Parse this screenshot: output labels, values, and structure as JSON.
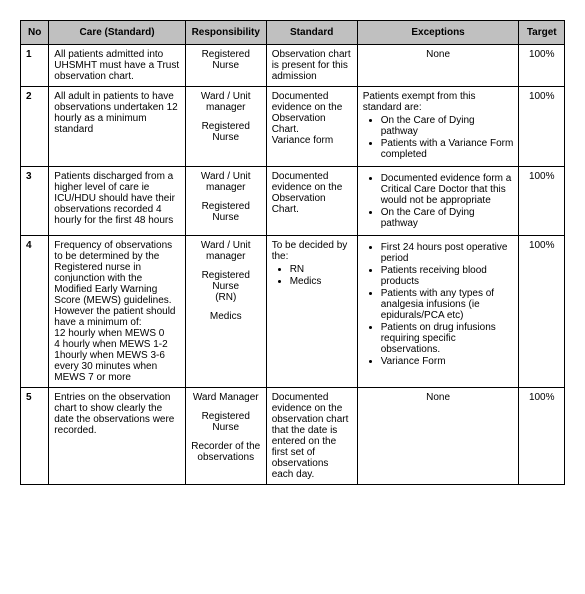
{
  "headers": {
    "no": "No",
    "care": "Care (Standard)",
    "responsibility": "Responsibility",
    "standard": "Standard",
    "exceptions": "Exceptions",
    "target": "Target"
  },
  "rows": [
    {
      "no": "1",
      "care": "All patients admitted into UHSMHT must have a Trust observation chart.",
      "resp1": "Registered Nurse",
      "standard": "Observation chart is present for this admission",
      "exc_plain": "None",
      "target": "100%"
    },
    {
      "no": "2",
      "care": "All adult in patients to have observations undertaken 12 hourly as a minimum standard",
      "resp1": "Ward / Unit manager",
      "resp2": "Registered Nurse",
      "std1": "Documented evidence on the Observation Chart.",
      "std2": "Variance form",
      "exc_lead": "Patients exempt from this standard are:",
      "exc_b1": "On the Care of Dying pathway",
      "exc_b2": "Patients with a Variance Form completed",
      "target": "100%"
    },
    {
      "no": "3",
      "care": "Patients discharged from a higher level of care ie ICU/HDU should have their observations recorded 4 hourly for the first 48 hours",
      "resp1": "Ward / Unit manager",
      "resp2": "Registered Nurse",
      "standard": "Documented evidence on the Observation Chart.",
      "exc_b1": "Documented evidence form a Critical Care Doctor that this would not be appropriate",
      "exc_b2": "On the Care of Dying pathway",
      "target": "100%"
    },
    {
      "no": "4",
      "care_p1": "Frequency of observations to be determined by the Registered nurse in conjunction with the Modified Early Warning Score (MEWS) guidelines. However the patient should have a minimum of:",
      "care_l1": "12 hourly when MEWS 0",
      "care_l2": "4 hourly when MEWS 1-2",
      "care_l3": "1hourly when MEWS 3-6",
      "care_l4": "every 30 minutes when MEWS 7 or more",
      "resp1": "Ward / Unit manager",
      "resp2": "Registered Nurse",
      "resp3": "(RN)",
      "resp4": "Medics",
      "std_lead": "To be decided by the:",
      "std_b1": "RN",
      "std_b2": "Medics",
      "exc_b1": "First 24 hours post operative period",
      "exc_b2": "Patients receiving blood products",
      "exc_b3": "Patients with any types of analgesia infusions (ie epidurals/PCA etc)",
      "exc_b4": "Patients on drug infusions requiring specific observations.",
      "exc_b5": "Variance Form",
      "target": "100%"
    },
    {
      "no": "5",
      "care": "Entries on the observation chart to show clearly the date the observations were recorded.",
      "resp1": "Ward Manager",
      "resp2": "Registered Nurse",
      "resp3": "Recorder of the observations",
      "standard": "Documented evidence on the observation chart that the date is entered on the first set of observations each day.",
      "exc_plain": "None",
      "target": "100%"
    }
  ]
}
